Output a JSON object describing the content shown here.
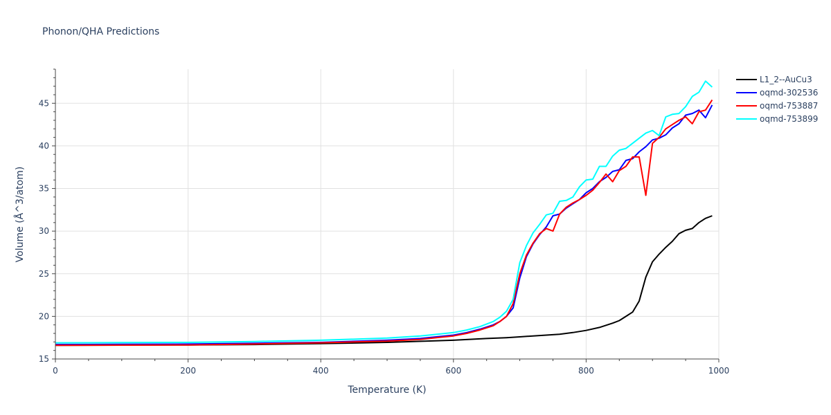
{
  "chart_data": {
    "type": "line",
    "title": "Phonon/QHA Predictions",
    "xlabel": "Temperature (K)",
    "ylabel": "Volume (Å^3/atom)",
    "xlim": [
      0,
      1000
    ],
    "ylim": [
      15,
      49
    ],
    "xticks": [
      0,
      200,
      400,
      600,
      800,
      1000
    ],
    "yticks": [
      15,
      20,
      25,
      30,
      35,
      40,
      45
    ],
    "grid": true,
    "legend_position": "top-right",
    "series": [
      {
        "name": "L1_2--AuCu3",
        "color": "#000000",
        "x": [
          0,
          100,
          200,
          300,
          400,
          500,
          600,
          650,
          680,
          700,
          730,
          760,
          780,
          800,
          820,
          840,
          850,
          860,
          870,
          880,
          890,
          900,
          910,
          920,
          930,
          940,
          950,
          960,
          970,
          980,
          990
        ],
        "y": [
          16.6,
          16.62,
          16.65,
          16.7,
          16.8,
          16.95,
          17.2,
          17.4,
          17.5,
          17.6,
          17.75,
          17.9,
          18.1,
          18.35,
          18.7,
          19.2,
          19.5,
          20.0,
          20.5,
          21.8,
          24.6,
          26.4,
          27.3,
          28.1,
          28.8,
          29.7,
          30.1,
          30.3,
          31.0,
          31.5,
          31.8
        ]
      },
      {
        "name": "oqmd-302536",
        "color": "#0000ff",
        "x": [
          0,
          100,
          200,
          300,
          400,
          500,
          550,
          600,
          620,
          640,
          660,
          670,
          680,
          690,
          700,
          710,
          720,
          730,
          740,
          750,
          760,
          770,
          780,
          790,
          800,
          810,
          820,
          830,
          840,
          850,
          860,
          870,
          880,
          890,
          900,
          910,
          920,
          930,
          940,
          950,
          960,
          970,
          980,
          990
        ],
        "y": [
          16.7,
          16.72,
          16.75,
          16.85,
          16.95,
          17.2,
          17.4,
          17.8,
          18.1,
          18.5,
          19.0,
          19.4,
          20.0,
          21.0,
          24.5,
          27.0,
          28.5,
          29.6,
          30.5,
          31.8,
          32.0,
          32.7,
          33.2,
          33.7,
          34.5,
          35.0,
          35.8,
          36.3,
          37.0,
          37.2,
          38.3,
          38.5,
          39.3,
          39.9,
          40.7,
          40.9,
          41.3,
          42.1,
          42.6,
          43.6,
          43.8,
          44.2,
          43.3,
          44.8
        ]
      },
      {
        "name": "oqmd-753887",
        "color": "#ff0000",
        "x": [
          0,
          100,
          200,
          300,
          400,
          500,
          550,
          600,
          620,
          640,
          660,
          670,
          680,
          690,
          700,
          710,
          720,
          730,
          740,
          750,
          760,
          770,
          780,
          790,
          800,
          810,
          820,
          830,
          840,
          850,
          860,
          870,
          880,
          890,
          900,
          910,
          920,
          930,
          940,
          950,
          960,
          970,
          980,
          990
        ],
        "y": [
          16.6,
          16.62,
          16.65,
          16.75,
          16.9,
          17.1,
          17.3,
          17.7,
          18.0,
          18.4,
          18.9,
          19.4,
          20.0,
          21.5,
          25.0,
          27.2,
          28.6,
          29.7,
          30.3,
          30.0,
          32.0,
          32.8,
          33.3,
          33.7,
          34.2,
          34.8,
          35.7,
          36.7,
          35.8,
          37.1,
          37.6,
          38.7,
          38.7,
          34.2,
          40.3,
          41.0,
          42.0,
          42.5,
          43.0,
          43.4,
          42.6,
          44.0,
          44.2,
          45.4
        ]
      },
      {
        "name": "oqmd-753899",
        "color": "#00ffff",
        "x": [
          0,
          100,
          200,
          300,
          400,
          500,
          550,
          600,
          620,
          640,
          660,
          670,
          680,
          690,
          700,
          710,
          720,
          730,
          740,
          750,
          760,
          770,
          780,
          790,
          800,
          810,
          820,
          830,
          840,
          850,
          860,
          870,
          880,
          890,
          900,
          910,
          920,
          930,
          940,
          950,
          960,
          970,
          980,
          990
        ],
        "y": [
          16.9,
          16.92,
          16.95,
          17.05,
          17.2,
          17.45,
          17.7,
          18.1,
          18.4,
          18.8,
          19.4,
          19.9,
          20.6,
          22.0,
          26.3,
          28.3,
          29.8,
          30.8,
          31.9,
          32.1,
          33.5,
          33.6,
          34.0,
          35.2,
          36.0,
          36.1,
          37.6,
          37.6,
          38.8,
          39.5,
          39.7,
          40.3,
          40.9,
          41.5,
          41.8,
          41.2,
          43.4,
          43.7,
          43.8,
          44.6,
          45.8,
          46.3,
          47.6,
          46.9
        ]
      }
    ]
  }
}
